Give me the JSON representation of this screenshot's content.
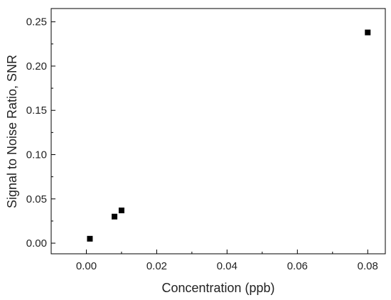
{
  "chart_data": {
    "type": "scatter",
    "title": "",
    "xlabel": "Concentration (ppb)",
    "ylabel": "Signal to Noise Ratio, SNR",
    "xlim": [
      -0.01,
      0.085
    ],
    "ylim": [
      -0.012,
      0.265
    ],
    "x_ticks": [
      0.0,
      0.02,
      0.04,
      0.06,
      0.08
    ],
    "x_tick_labels": [
      "0.00",
      "0.02",
      "0.04",
      "0.06",
      "0.08"
    ],
    "y_ticks": [
      0.0,
      0.05,
      0.1,
      0.15,
      0.2,
      0.25
    ],
    "y_tick_labels": [
      "0.00",
      "0.05",
      "0.10",
      "0.15",
      "0.20",
      "0.25"
    ],
    "grid": false,
    "marker": "square",
    "marker_color": "#000000",
    "series": [
      {
        "points": [
          {
            "x": 0.001,
            "y": 0.005
          },
          {
            "x": 0.008,
            "y": 0.03
          },
          {
            "x": 0.01,
            "y": 0.037
          },
          {
            "x": 0.08,
            "y": 0.238
          }
        ]
      }
    ]
  }
}
